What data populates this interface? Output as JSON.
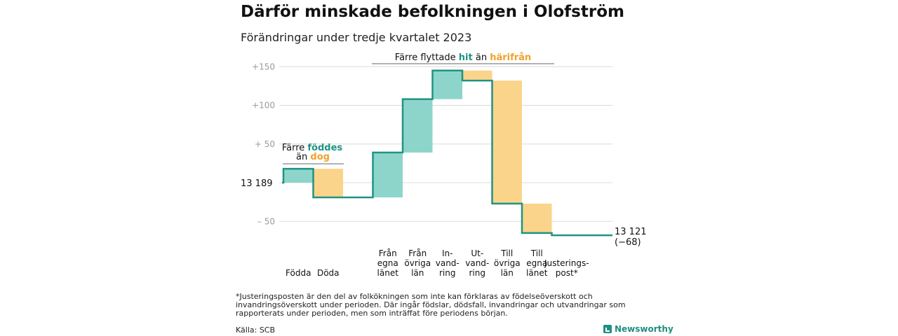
{
  "title": "Därför minskade befolkningen i Olofström",
  "subtitle": "Förändringar under tredje kvartalet 2023",
  "chart_data": {
    "type": "waterfall",
    "start_value": 13189,
    "start_label": "13  189",
    "end_label_line1": "13 121",
    "end_label_line2": "(−68)",
    "y_relative_range": [
      -60,
      160
    ],
    "y_ticks": [
      {
        "value": 150,
        "label": "+150"
      },
      {
        "value": 100,
        "label": "+100"
      },
      {
        "value": 50,
        "label": "+  50"
      },
      {
        "value": -50,
        "label": "–  50"
      }
    ],
    "grid": true,
    "steps": [
      {
        "label_lines": [
          "Födda"
        ],
        "value": 18,
        "kind": "inflow"
      },
      {
        "label_lines": [
          "Döda"
        ],
        "value": -37,
        "kind": "outflow"
      },
      {
        "label_lines": [
          "Från",
          "egna",
          "länet"
        ],
        "value": 58,
        "kind": "inflow"
      },
      {
        "label_lines": [
          "Från",
          "övriga",
          "län"
        ],
        "value": 69,
        "kind": "inflow"
      },
      {
        "label_lines": [
          "In-",
          "vand-",
          "ring"
        ],
        "value": 37,
        "kind": "inflow"
      },
      {
        "label_lines": [
          "Ut-",
          "vand-",
          "ring"
        ],
        "value": -13,
        "kind": "outflow"
      },
      {
        "label_lines": [
          "Till",
          "övriga",
          "län"
        ],
        "value": -159,
        "kind": "outflow"
      },
      {
        "label_lines": [
          "Till",
          "egna",
          "länet"
        ],
        "value": -38,
        "kind": "outflow"
      },
      {
        "label_lines": [
          "Justerings-",
          "post*"
        ],
        "value": -3,
        "kind": "adjustment"
      }
    ],
    "annotations": {
      "birth": {
        "parts": [
          "Färre ",
          "föddes"
        ],
        "line2": [
          "än ",
          "dog"
        ]
      },
      "migration": {
        "parts": [
          "Färre flyttade ",
          "hit",
          "  än ",
          "härifrån"
        ]
      }
    },
    "colors": {
      "inflow": "#8dd5cb",
      "outflow": "#fad48a",
      "line": "#1f9384",
      "inflow_text": "#1f9384",
      "outflow_text": "#f0a22a"
    }
  },
  "footnote": "*Justeringsposten är den del av folkökningen som inte kan förklaras av födelseöverskott och invandringsöverskott under perioden. Där ingår födslar, dödsfall, invandringar och utvandringar som rapporterats under perioden, men som inträffat före periodens början.",
  "source": "Källa: SCB",
  "brand": "Newsworthy"
}
